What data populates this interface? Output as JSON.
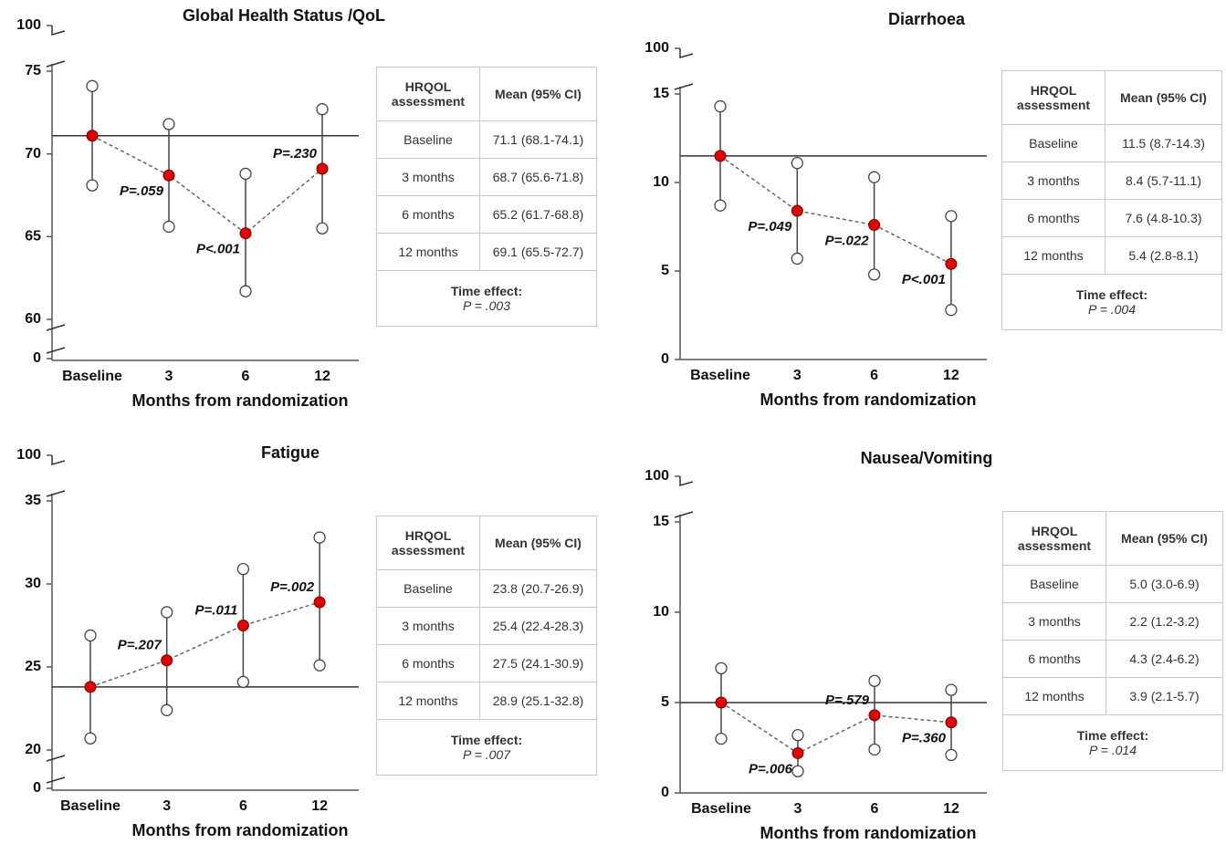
{
  "chart_data": [
    {
      "type": "errorbar",
      "title": "Global Health Status /QoL",
      "categories": [
        "Baseline",
        "3",
        "6",
        "12"
      ],
      "values": [
        71.1,
        68.7,
        65.2,
        69.1
      ],
      "lower": [
        68.1,
        65.6,
        61.7,
        65.5
      ],
      "upper": [
        74.1,
        71.8,
        68.8,
        72.7
      ],
      "p_labels": [
        null,
        "P=.059",
        "P<.001",
        "P=.230"
      ],
      "x_label": "Months from randomization",
      "ylim": [
        60,
        75
      ],
      "yticks": [
        60,
        65,
        70,
        75
      ],
      "break_ticks": [
        0,
        100
      ],
      "color": "#e00000",
      "table": {
        "header": [
          "HRQOL assessment",
          "Mean (95% CI)"
        ],
        "rows": [
          [
            "Baseline",
            "71.1 (68.1-74.1)"
          ],
          [
            "3 months",
            "68.7 (65.6-71.8)"
          ],
          [
            "6 months",
            "65.2 (61.7-68.8)"
          ],
          [
            "12 months",
            "69.1 (65.5-72.7)"
          ]
        ],
        "footer": [
          "Time effect:",
          "P = .003"
        ]
      }
    },
    {
      "type": "errorbar",
      "title": "Diarrhoea",
      "categories": [
        "Baseline",
        "3",
        "6",
        "12"
      ],
      "values": [
        11.5,
        8.4,
        7.6,
        5.4
      ],
      "lower": [
        8.7,
        5.7,
        4.8,
        2.8
      ],
      "upper": [
        14.3,
        11.1,
        10.3,
        8.1
      ],
      "p_labels": [
        null,
        "P=.049",
        "P=.022",
        "P<.001"
      ],
      "x_label": "Months from randomization",
      "ylim": [
        0,
        15
      ],
      "yticks": [
        0,
        5,
        10,
        15
      ],
      "break_ticks": [
        100
      ],
      "color": "#e00000",
      "table": {
        "header": [
          "HRQOL assessment",
          "Mean (95% CI)"
        ],
        "rows": [
          [
            "Baseline",
            "11.5 (8.7-14.3)"
          ],
          [
            "3 months",
            "8.4 (5.7-11.1)"
          ],
          [
            "6 months",
            "7.6 (4.8-10.3)"
          ],
          [
            "12 months",
            "5.4 (2.8-8.1)"
          ]
        ],
        "footer": [
          "Time effect:",
          "P = .004"
        ]
      }
    },
    {
      "type": "errorbar",
      "title": "Fatigue",
      "categories": [
        "Baseline",
        "3",
        "6",
        "12"
      ],
      "values": [
        23.8,
        25.4,
        27.5,
        28.9
      ],
      "lower": [
        20.7,
        22.4,
        24.1,
        25.1
      ],
      "upper": [
        26.9,
        28.3,
        30.9,
        32.8
      ],
      "p_labels": [
        null,
        "P=.207",
        "P=.011",
        "P=.002"
      ],
      "x_label": "Months from randomization",
      "ylim": [
        20,
        35
      ],
      "yticks": [
        20,
        25,
        30,
        35
      ],
      "break_ticks": [
        0,
        100
      ],
      "color": "#e00000",
      "table": {
        "header": [
          "HRQOL assessment",
          "Mean (95% CI)"
        ],
        "rows": [
          [
            "Baseline",
            "23.8 (20.7-26.9)"
          ],
          [
            "3 months",
            "25.4 (22.4-28.3)"
          ],
          [
            "6 months",
            "27.5 (24.1-30.9)"
          ],
          [
            "12 months",
            "28.9 (25.1-32.8)"
          ]
        ],
        "footer": [
          "Time effect:",
          "P = .007"
        ]
      }
    },
    {
      "type": "errorbar",
      "title": "Nausea/Vomiting",
      "categories": [
        "Baseline",
        "3",
        "6",
        "12"
      ],
      "values": [
        5.0,
        2.2,
        4.3,
        3.9
      ],
      "lower": [
        3.0,
        1.2,
        2.4,
        2.1
      ],
      "upper": [
        6.9,
        3.2,
        6.2,
        5.7
      ],
      "p_labels": [
        null,
        "P=.006",
        "P=.579",
        "P=.360"
      ],
      "x_label": "Months from randomization",
      "ylim": [
        0,
        15
      ],
      "yticks": [
        0,
        5,
        10,
        15
      ],
      "break_ticks": [
        100
      ],
      "color": "#e00000",
      "table": {
        "header": [
          "HRQOL assessment",
          "Mean (95% CI)"
        ],
        "rows": [
          [
            "Baseline",
            "5.0 (3.0-6.9)"
          ],
          [
            "3 months",
            "2.2 (1.2-3.2)"
          ],
          [
            "6 months",
            "4.3 (2.4-6.2)"
          ],
          [
            "12 months",
            "3.9 (2.1-5.7)"
          ]
        ],
        "footer": [
          "Time effect:",
          "P = .014"
        ]
      }
    }
  ]
}
